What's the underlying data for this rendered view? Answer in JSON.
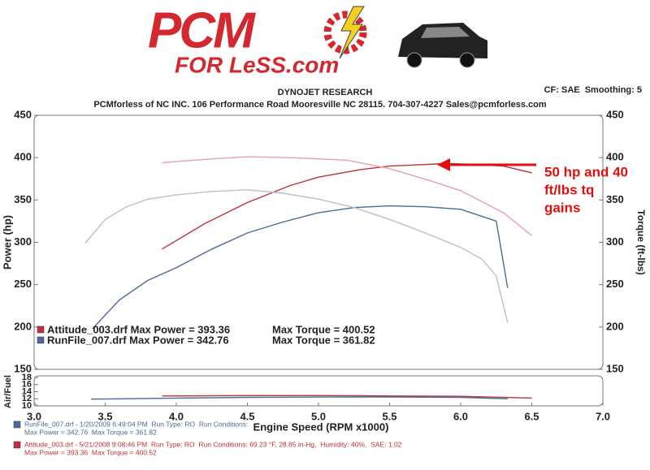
{
  "header": {
    "logo_top": "PCM",
    "logo_bottom": "FOR LeSS.com",
    "brand": "DYNOJET RESEARCH",
    "settings": "CF: SAE  Smoothing: 5",
    "address": "PCMforless of NC INC. 106 Performance Road Mooresville NC 28115. 704-307-4227 Sales@pcmforless.com"
  },
  "chart_data": [
    {
      "type": "line",
      "ylabel": "Power (hp)",
      "y2label": "Torque (ft-lbs)",
      "xlim": [
        3,
        7
      ],
      "ylim": [
        150,
        450
      ],
      "yticks": [
        150,
        200,
        250,
        300,
        350,
        400,
        450
      ],
      "y2lim": [
        150,
        450
      ],
      "y2ticks": [
        150,
        200,
        250,
        300,
        350,
        400,
        450
      ],
      "series": [
        {
          "color": "#c0303a",
          "x": [
            3.9,
            4.2,
            4.5,
            4.8,
            5.0,
            5.3,
            5.5,
            5.9,
            6.1,
            6.3,
            6.5
          ],
          "values": [
            292,
            322,
            347,
            367,
            377,
            386,
            390,
            393,
            392,
            390,
            382
          ]
        },
        {
          "color": "#e8a0a8",
          "axis": "y2",
          "x": [
            3.9,
            4.2,
            4.5,
            4.8,
            5.2,
            5.5,
            5.8,
            6.0,
            6.3,
            6.5
          ],
          "values": [
            394,
            398,
            401,
            400,
            397,
            387,
            372,
            361,
            335,
            308
          ]
        },
        {
          "color": "#4a6a9a",
          "x": [
            3.41,
            3.6,
            3.8,
            4.0,
            4.25,
            4.5,
            4.75,
            5.0,
            5.25,
            5.5,
            5.75,
            6.0,
            6.25,
            6.33
          ],
          "values": [
            198,
            232,
            255,
            270,
            292,
            311,
            324,
            335,
            341,
            343,
            342,
            339,
            325,
            246
          ]
        },
        {
          "color": "#b8c0d0",
          "axis": "y2",
          "x": [
            3.36,
            3.5,
            3.65,
            3.8,
            4.0,
            4.25,
            4.5,
            4.75,
            5.0,
            5.25,
            5.5,
            5.75,
            6.0,
            6.15,
            6.25,
            6.33
          ],
          "values": [
            299,
            327,
            342,
            351,
            356,
            360,
            362,
            358,
            351,
            341,
            327,
            311,
            294,
            280,
            260,
            205
          ]
        }
      ],
      "legend": [
        {
          "color": "#c0303a",
          "text": "Attitude_003.drf Max Power = 393.36",
          "torque_text": "Max Torque = 400.52"
        },
        {
          "color": "#4a6a9a",
          "text": "RunFile_007.drf Max Power = 342.76",
          "torque_text": "Max Torque = 361.82"
        }
      ],
      "annotation": [
        "50 hp and 40",
        "ft/lbs tq",
        "gains"
      ]
    },
    {
      "type": "line",
      "ylabel": "Air/Fuel",
      "xlabel": "Engine Speed (RPM x1000)",
      "xlim": [
        3,
        7
      ],
      "xticks": [
        {
          "value": 3,
          "label": "3.0"
        },
        3.5,
        {
          "value": 4,
          "label": "4.0"
        },
        4.5,
        {
          "value": 5,
          "label": "5.0"
        },
        5.5,
        {
          "value": 6,
          "label": "6.0"
        },
        6.5,
        {
          "value": 7,
          "label": "7.0"
        }
      ],
      "ylim": [
        10,
        18
      ],
      "yticks": [
        10,
        12,
        14,
        16,
        18
      ],
      "series": [
        {
          "color": "#c0303a",
          "x": [
            3.9,
            4.5,
            5.0,
            5.5,
            6.0,
            6.5
          ],
          "values": [
            12.8,
            12.9,
            12.9,
            12.8,
            12.7,
            12.2
          ]
        },
        {
          "color": "#4a6a9a",
          "x": [
            3.4,
            4.0,
            4.5,
            5.0,
            5.5,
            6.0,
            6.33
          ],
          "values": [
            11.9,
            12.2,
            12.4,
            12.5,
            12.5,
            12.4,
            12.0
          ]
        }
      ]
    }
  ],
  "footer": [
    {
      "color": "#4a6a9a",
      "lines": [
        "RunFile_007.drf - 1/20/2009 6:49:04 PM  Run Type: RO  Run Conditions:",
        "Max Power = 342.76  Max Torque = 361.82"
      ]
    },
    {
      "color": "#c0303a",
      "lines": [
        "Attitude_003.drf - 5/21/2008 9:08:46 PM  Run Type: RO  Run Conditions: 69.23 °F, 28.85 in-Hg,  Humidity: 40%,  SAE: 1.02",
        "Max Power = 393.36  Max Torque = 400.52"
      ]
    }
  ]
}
